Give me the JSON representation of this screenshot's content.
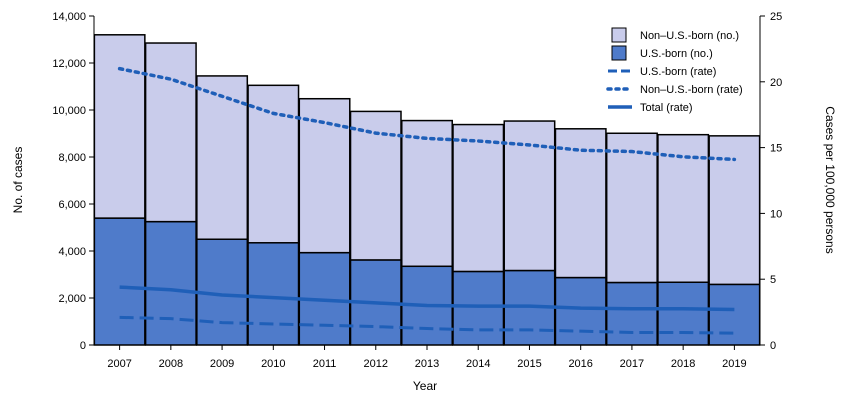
{
  "chart_data": {
    "type": "bar",
    "categories": [
      "2007",
      "2008",
      "2009",
      "2010",
      "2011",
      "2012",
      "2013",
      "2014",
      "2015",
      "2016",
      "2017",
      "2018",
      "2019"
    ],
    "xlabel": "Year",
    "ylabel": "No. of cases",
    "y2label": "Cases per 100,000 persons",
    "ylim": [
      0,
      14000
    ],
    "y2lim": [
      0,
      25
    ],
    "yticks": [
      "0",
      "2,000",
      "4,000",
      "6,000",
      "8,000",
      "10,000",
      "12,000",
      "14,000"
    ],
    "y2ticks": [
      "0",
      "5",
      "10",
      "15",
      "20",
      "25"
    ],
    "stacked": true,
    "series": [
      {
        "name": "Non–U.S.-born (no.)",
        "kind": "bar",
        "values": [
          7800,
          7600,
          6950,
          6700,
          6550,
          6320,
          6200,
          6250,
          6360,
          6330,
          6350,
          6280,
          6320
        ],
        "color": "#c9cceb"
      },
      {
        "name": "U.S.-born (no.)",
        "kind": "bar",
        "values": [
          5400,
          5250,
          4500,
          4350,
          3930,
          3620,
          3350,
          3130,
          3170,
          2870,
          2660,
          2670,
          2580
        ],
        "color": "#4f7bca"
      },
      {
        "name": "U.S.-born (rate)",
        "kind": "line",
        "style": "dashed",
        "axis": "right",
        "values": [
          2.1,
          2.0,
          1.7,
          1.6,
          1.5,
          1.4,
          1.25,
          1.15,
          1.15,
          1.05,
          0.95,
          0.95,
          0.9
        ],
        "color": "#1f5fb8"
      },
      {
        "name": "Non–U.S.-born (rate)",
        "kind": "line",
        "style": "dotted",
        "axis": "right",
        "values": [
          21.0,
          20.2,
          18.9,
          17.6,
          16.9,
          16.1,
          15.7,
          15.5,
          15.2,
          14.8,
          14.7,
          14.3,
          14.1
        ],
        "color": "#1f5fb8"
      },
      {
        "name": "Total (rate)",
        "kind": "line",
        "style": "solid",
        "axis": "right",
        "values": [
          4.4,
          4.2,
          3.8,
          3.6,
          3.4,
          3.2,
          3.0,
          2.95,
          2.95,
          2.8,
          2.75,
          2.75,
          2.7
        ],
        "color": "#1f5fb8"
      }
    ],
    "legend_position": "top-right",
    "grid": false
  }
}
